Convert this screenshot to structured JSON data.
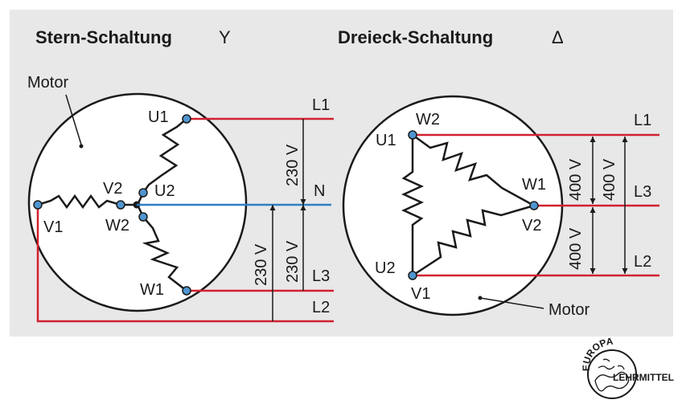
{
  "star": {
    "title": "Stern-Schaltung",
    "symbol": "Y",
    "motor_label": "Motor",
    "terminals": {
      "u1": "U1",
      "u2": "U2",
      "v1": "V1",
      "v2": "V2",
      "w1": "W1",
      "w2": "W2"
    },
    "lines": {
      "l1": "L1",
      "n": "N",
      "l3": "L3",
      "l2": "L2"
    },
    "voltages": {
      "l1_n": "230 V",
      "n_l3": "230 V",
      "n_l2": "230 V"
    }
  },
  "delta": {
    "title": "Dreieck-Schaltung",
    "symbol": "Δ",
    "motor_label": "Motor",
    "terminals": {
      "w2": "W2",
      "u1": "U1",
      "w1": "W1",
      "v2": "V2",
      "u2": "U2",
      "v1": "V1"
    },
    "lines": {
      "l1": "L1",
      "l3": "L3",
      "l2": "L2"
    },
    "voltages": {
      "l1_l3": "400 V",
      "l3_l2": "400 V",
      "l1_l2": "400 V"
    }
  },
  "logo": {
    "top": "EUROPA",
    "bottom": "LEHRMITTEL"
  },
  "colors": {
    "panel": "#e8e8e8",
    "red": "#d2202f",
    "blue": "#2f7fc4",
    "terminal": "#4f95d0",
    "ink": "#1a1a1a"
  }
}
